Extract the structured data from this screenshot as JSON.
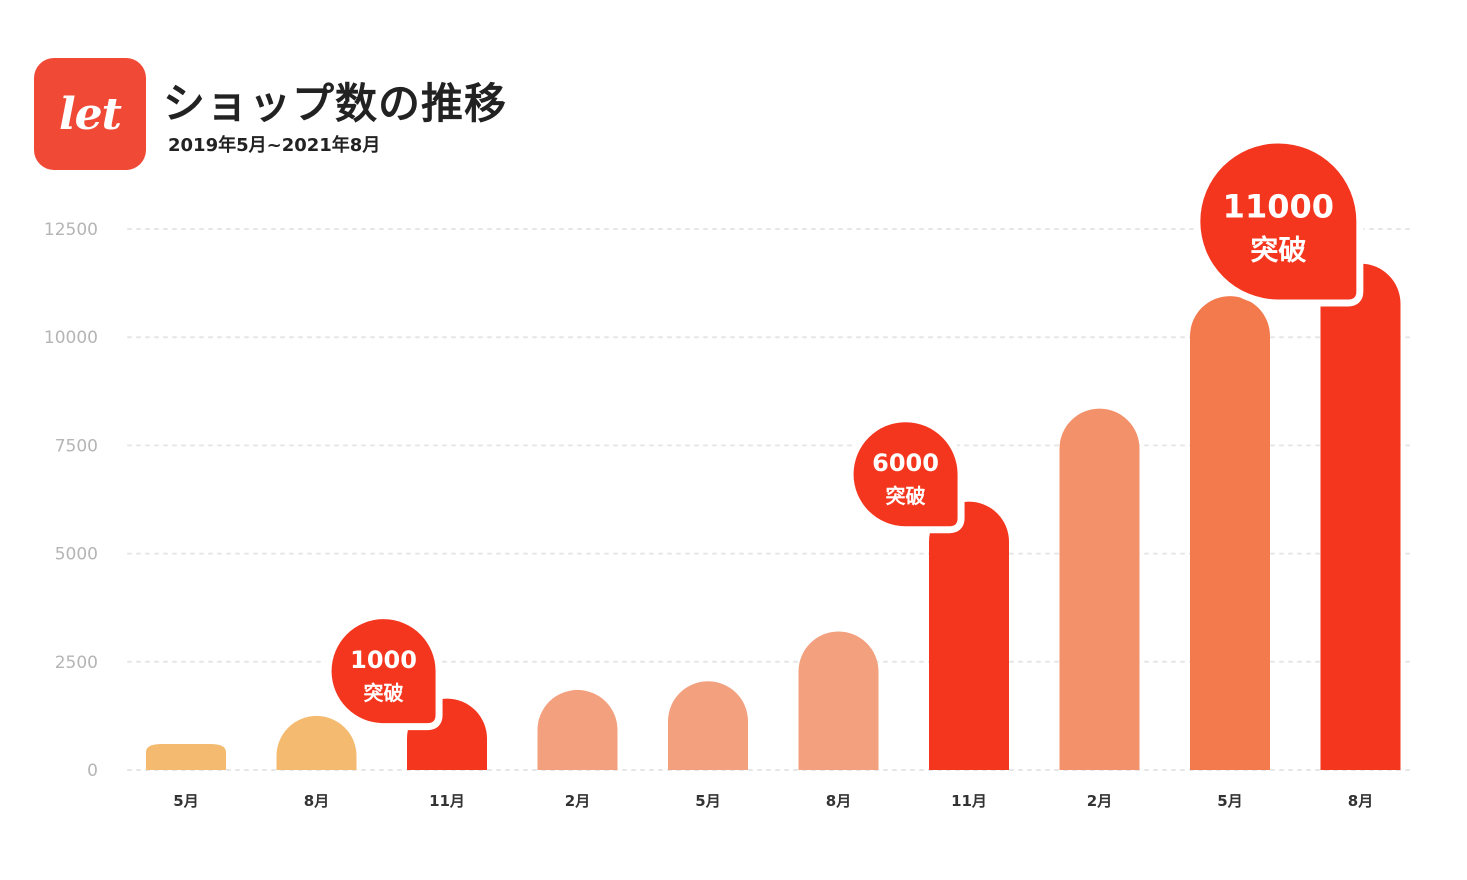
{
  "header": {
    "logo_text": "let",
    "title": "ショップ数の推移",
    "subtitle": "2019年5月~2021年8月"
  },
  "chart_data": {
    "type": "bar",
    "title": "ショップ数の推移",
    "subtitle": "2019年5月~2021年8月",
    "categories": [
      "5月",
      "8月",
      "11月",
      "2月",
      "5月",
      "8月",
      "11月",
      "2月",
      "5月",
      "8月"
    ],
    "values": [
      600,
      1250,
      1650,
      1850,
      2050,
      3200,
      6200,
      8350,
      10950,
      11700
    ],
    "bar_colors": [
      "#f4bb70",
      "#f4bb70",
      "#f5361e",
      "#f3a07e",
      "#f3a07e",
      "#f3a07e",
      "#f5361e",
      "#f3926a",
      "#f27a4d",
      "#f5361e"
    ],
    "ylim": [
      0,
      12500
    ],
    "yticks": [
      0,
      2500,
      5000,
      7500,
      10000,
      12500
    ],
    "grid": true,
    "annotations": [
      {
        "index": 2,
        "value": "1000",
        "label": "突破"
      },
      {
        "index": 6,
        "value": "6000",
        "label": "突破"
      },
      {
        "index": 9,
        "value": "11000",
        "label": "突破"
      }
    ]
  }
}
